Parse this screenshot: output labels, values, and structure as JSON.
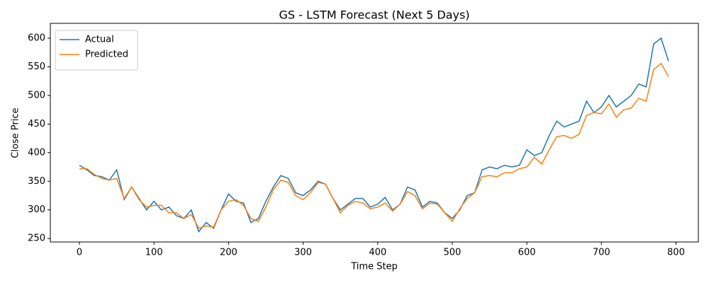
{
  "chart_data": {
    "type": "line",
    "title": "GS - LSTM Forecast (Next 5 Days)",
    "x_label": "Time Step",
    "y_label": "Close Price",
    "x": [
      0,
      10,
      20,
      30,
      40,
      50,
      60,
      70,
      80,
      90,
      100,
      110,
      120,
      130,
      140,
      150,
      160,
      170,
      180,
      190,
      200,
      210,
      220,
      230,
      240,
      250,
      260,
      270,
      280,
      290,
      300,
      310,
      320,
      330,
      340,
      350,
      360,
      370,
      380,
      390,
      400,
      410,
      420,
      430,
      440,
      450,
      460,
      470,
      480,
      490,
      500,
      510,
      520,
      530,
      540,
      550,
      560,
      570,
      580,
      590,
      600,
      610,
      620,
      630,
      640,
      650,
      660,
      670,
      680,
      690,
      700,
      710,
      720,
      730,
      740,
      750,
      760,
      770,
      780,
      790
    ],
    "series": [
      {
        "name": "Actual",
        "color": "#1f77b4",
        "values": [
          378,
          370,
          360,
          358,
          352,
          370,
          318,
          340,
          320,
          300,
          315,
          300,
          305,
          290,
          285,
          300,
          262,
          278,
          268,
          300,
          328,
          315,
          312,
          278,
          285,
          315,
          340,
          360,
          355,
          330,
          325,
          335,
          350,
          345,
          320,
          300,
          310,
          320,
          320,
          305,
          310,
          322,
          300,
          310,
          340,
          335,
          305,
          315,
          312,
          295,
          285,
          300,
          325,
          330,
          370,
          375,
          372,
          378,
          375,
          378,
          405,
          395,
          400,
          430,
          455,
          445,
          450,
          455,
          490,
          470,
          480,
          500,
          480,
          490,
          500,
          520,
          515,
          590,
          600,
          560
        ]
      },
      {
        "name": "Predicted",
        "color": "#ff7f0e",
        "values": [
          372,
          372,
          362,
          355,
          352,
          355,
          320,
          340,
          318,
          305,
          308,
          308,
          295,
          295,
          285,
          292,
          268,
          272,
          270,
          300,
          315,
          318,
          308,
          285,
          280,
          305,
          335,
          352,
          348,
          325,
          318,
          330,
          348,
          345,
          320,
          295,
          308,
          315,
          312,
          302,
          305,
          312,
          298,
          310,
          332,
          325,
          302,
          312,
          310,
          295,
          280,
          302,
          320,
          330,
          358,
          360,
          358,
          365,
          365,
          372,
          375,
          392,
          380,
          405,
          428,
          430,
          425,
          432,
          465,
          470,
          468,
          485,
          462,
          475,
          478,
          495,
          490,
          545,
          556,
          533
        ]
      }
    ],
    "xlim": [
      -39,
      830
    ],
    "ylim": [
      244,
      626
    ],
    "xticks": [
      0,
      100,
      200,
      300,
      400,
      500,
      600,
      700,
      800
    ],
    "yticks": [
      250,
      300,
      350,
      400,
      450,
      500,
      550,
      600
    ],
    "legend": "upper left",
    "grid": false
  }
}
